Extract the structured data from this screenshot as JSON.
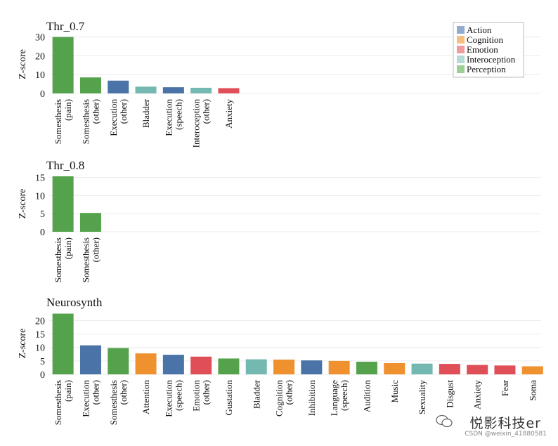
{
  "colors": {
    "Action": "#4a74a8",
    "Cognition": "#f0912f",
    "Emotion": "#e04f57",
    "Interoception": "#74b8b2",
    "Perception": "#55a24c"
  },
  "legend": {
    "entries": [
      {
        "label": "Action",
        "swatch": "#92acd0"
      },
      {
        "label": "Cognition",
        "swatch": "#f7bf7f"
      },
      {
        "label": "Emotion",
        "swatch": "#ef9ca0"
      },
      {
        "label": "Interoception",
        "swatch": "#b4dbd7"
      },
      {
        "label": "Perception",
        "swatch": "#9ccf94"
      }
    ]
  },
  "watermark": {
    "text": "悦影科技er",
    "sub": "CSDN @weixin_41880581"
  },
  "chart_data": [
    {
      "type": "bar",
      "title": "Thr_0.7",
      "ylabel": "Z-score",
      "ylim": [
        0,
        31
      ],
      "yticks": [
        0,
        10,
        20,
        30
      ],
      "categories": [
        [
          "Somesthesis",
          "(pain)"
        ],
        [
          "Somesthesis",
          "(other)"
        ],
        [
          "Execution",
          "(other)"
        ],
        [
          "Bladder"
        ],
        [
          "Execution",
          "(speech)"
        ],
        [
          "Interoception",
          "(other)"
        ],
        [
          "Anxiety"
        ]
      ],
      "values": [
        30.0,
        8.5,
        6.8,
        3.6,
        3.3,
        3.0,
        2.8
      ],
      "groups": [
        "Perception",
        "Perception",
        "Action",
        "Interoception",
        "Action",
        "Interoception",
        "Emotion"
      ]
    },
    {
      "type": "bar",
      "title": "Thr_0.8",
      "ylabel": "Z-score",
      "ylim": [
        0,
        15.5
      ],
      "yticks": [
        0,
        5,
        10,
        15
      ],
      "categories": [
        [
          "Somesthesis",
          "(pain)"
        ],
        [
          "Somesthesis",
          "(other)"
        ]
      ],
      "values": [
        15.3,
        5.2
      ],
      "groups": [
        "Perception",
        "Perception"
      ]
    },
    {
      "type": "bar",
      "title": "Neurosynth",
      "ylabel": "Z-score",
      "ylim": [
        0,
        23
      ],
      "yticks": [
        0,
        5,
        10,
        15,
        20
      ],
      "categories": [
        [
          "Somesthesis",
          "(pain)"
        ],
        [
          "Execution",
          "(other)"
        ],
        [
          "Somesthesis",
          "(other)"
        ],
        [
          "Attention"
        ],
        [
          "Execution",
          "(speech)"
        ],
        [
          "Emotion",
          "(other)"
        ],
        [
          "Gustation"
        ],
        [
          "Bladder"
        ],
        [
          "Cognition",
          "(other)"
        ],
        [
          "Inhibition"
        ],
        [
          "Language",
          "(speech)"
        ],
        [
          "Audition"
        ],
        [
          "Music"
        ],
        [
          "Sexuality"
        ],
        [
          "Disgust"
        ],
        [
          "Anxiety"
        ],
        [
          "Fear"
        ],
        [
          "Soma"
        ]
      ],
      "values": [
        22.6,
        10.8,
        9.8,
        7.8,
        7.3,
        6.6,
        5.9,
        5.6,
        5.5,
        5.2,
        5.0,
        4.7,
        4.2,
        4.0,
        3.9,
        3.5,
        3.3,
        3.0
      ],
      "groups": [
        "Perception",
        "Action",
        "Perception",
        "Cognition",
        "Action",
        "Emotion",
        "Perception",
        "Interoception",
        "Cognition",
        "Action",
        "Cognition",
        "Perception",
        "Cognition",
        "Interoception",
        "Emotion",
        "Emotion",
        "Emotion",
        "Cognition"
      ]
    }
  ]
}
